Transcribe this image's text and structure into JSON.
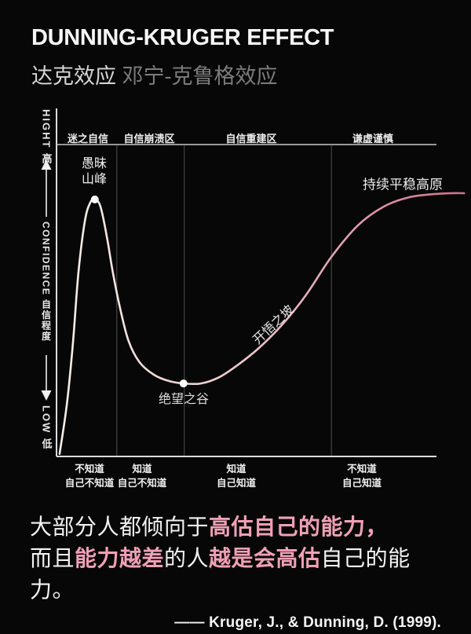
{
  "header": {
    "title": "DUNNING-KRUGER EFFECT",
    "subtitle_zh": "达克效应",
    "subtitle_full": "邓宁-克鲁格效应"
  },
  "chart_data": {
    "type": "line",
    "title": "Dunning-Kruger Effect — confidence vs. knowledge curve",
    "legend": "none",
    "grid": "zone dividers only",
    "y_axis": {
      "high_label": "HIGHT 高",
      "axis_label": "CONFIDENCE 自信程度",
      "low_label": "LOW 低"
    },
    "zones": [
      "迷之自信",
      "自信崩溃区",
      "自信重建区",
      "谦虚谨慎"
    ],
    "zone_boundaries_pct": [
      15.9,
      33.7,
      72.5
    ],
    "x_categories": [
      {
        "line1": "不知道",
        "line2": "自己不知道"
      },
      {
        "line1": "知道",
        "line2": "自己不知道"
      },
      {
        "line1": "知道",
        "line2": "自己知道"
      },
      {
        "line1": "不知道",
        "line2": "自己知道"
      }
    ],
    "annotations": {
      "peak_line1": "愚昧",
      "peak_line2": "山峰",
      "valley": "绝望之谷",
      "slope": "开悟之坡",
      "plateau": "持续平稳高原"
    },
    "curve_points_pct": [
      [
        0.8,
        0.8
      ],
      [
        2.7,
        16.4
      ],
      [
        4.3,
        36.0
      ],
      [
        5.8,
        59.2
      ],
      [
        7.5,
        75.6
      ],
      [
        8.9,
        81.4
      ],
      [
        10.1,
        82.4
      ],
      [
        11.6,
        80.1
      ],
      [
        13.3,
        70.3
      ],
      [
        14.9,
        58.7
      ],
      [
        16.8,
        47.4
      ],
      [
        19.0,
        37.0
      ],
      [
        21.9,
        30.2
      ],
      [
        25.7,
        26.2
      ],
      [
        29.6,
        24.2
      ],
      [
        33.5,
        23.4
      ],
      [
        38.1,
        23.4
      ],
      [
        42.9,
        25.4
      ],
      [
        48.0,
        29.5
      ],
      [
        53.6,
        35.0
      ],
      [
        59.4,
        42.1
      ],
      [
        65.6,
        51.4
      ],
      [
        72.5,
        64.0
      ],
      [
        79.5,
        74.1
      ],
      [
        86.3,
        80.1
      ],
      [
        93.0,
        83.1
      ],
      [
        99.4,
        84.1
      ],
      [
        103.9,
        84.4
      ],
      [
        107.5,
        84.4
      ]
    ],
    "peak_point_pct": [
      10.1,
      82.4
    ],
    "valley_point_pct": [
      33.5,
      23.4
    ],
    "curve_colors": {
      "start": "#f8efe8",
      "mid": "#ecc9cc",
      "end": "#d06f8c"
    },
    "marker_color": "#ffffff",
    "divider_color": "#4f4f4f",
    "axis_color": "#dcdcdc"
  },
  "statement": {
    "line1": [
      {
        "text": "大部分人都倾向于",
        "highlight": false
      },
      {
        "text": "高估自己的能力，",
        "highlight": true
      }
    ],
    "line2": [
      {
        "text": "而且",
        "highlight": false
      },
      {
        "text": "能力越差",
        "highlight": true
      },
      {
        "text": "的人",
        "highlight": false
      },
      {
        "text": "越是会高估",
        "highlight": true
      },
      {
        "text": "自己的能力。",
        "highlight": false
      }
    ],
    "citation": "—— Kruger, J., & Dunning, D. (1999)."
  },
  "colors": {
    "background": "#070707",
    "accent_pink": "#f0a0b6",
    "title_white": "#f7f7f7",
    "subtitle_gray": "#7c7c7c"
  }
}
